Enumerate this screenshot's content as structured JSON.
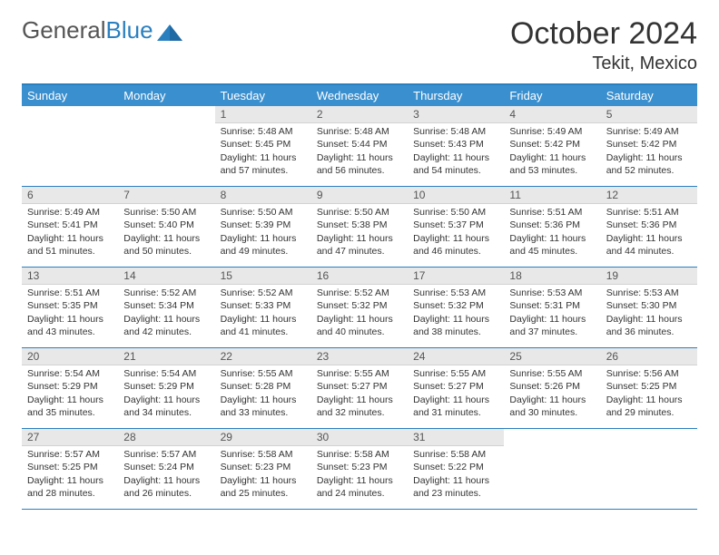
{
  "brand": {
    "part1": "General",
    "part2": "Blue",
    "accent_color": "#2a7fbf",
    "text_color": "#555555"
  },
  "title": "October 2024",
  "location": "Tekit, Mexico",
  "header_bg": "#3a8fcf",
  "border_color": "#2a7fbf",
  "daynum_bg": "#e8e8e8",
  "weekdays": [
    "Sunday",
    "Monday",
    "Tuesday",
    "Wednesday",
    "Thursday",
    "Friday",
    "Saturday"
  ],
  "weeks": [
    [
      null,
      null,
      {
        "n": "1",
        "sr": "Sunrise: 5:48 AM",
        "ss": "Sunset: 5:45 PM",
        "d1": "Daylight: 11 hours",
        "d2": "and 57 minutes."
      },
      {
        "n": "2",
        "sr": "Sunrise: 5:48 AM",
        "ss": "Sunset: 5:44 PM",
        "d1": "Daylight: 11 hours",
        "d2": "and 56 minutes."
      },
      {
        "n": "3",
        "sr": "Sunrise: 5:48 AM",
        "ss": "Sunset: 5:43 PM",
        "d1": "Daylight: 11 hours",
        "d2": "and 54 minutes."
      },
      {
        "n": "4",
        "sr": "Sunrise: 5:49 AM",
        "ss": "Sunset: 5:42 PM",
        "d1": "Daylight: 11 hours",
        "d2": "and 53 minutes."
      },
      {
        "n": "5",
        "sr": "Sunrise: 5:49 AM",
        "ss": "Sunset: 5:42 PM",
        "d1": "Daylight: 11 hours",
        "d2": "and 52 minutes."
      }
    ],
    [
      {
        "n": "6",
        "sr": "Sunrise: 5:49 AM",
        "ss": "Sunset: 5:41 PM",
        "d1": "Daylight: 11 hours",
        "d2": "and 51 minutes."
      },
      {
        "n": "7",
        "sr": "Sunrise: 5:50 AM",
        "ss": "Sunset: 5:40 PM",
        "d1": "Daylight: 11 hours",
        "d2": "and 50 minutes."
      },
      {
        "n": "8",
        "sr": "Sunrise: 5:50 AM",
        "ss": "Sunset: 5:39 PM",
        "d1": "Daylight: 11 hours",
        "d2": "and 49 minutes."
      },
      {
        "n": "9",
        "sr": "Sunrise: 5:50 AM",
        "ss": "Sunset: 5:38 PM",
        "d1": "Daylight: 11 hours",
        "d2": "and 47 minutes."
      },
      {
        "n": "10",
        "sr": "Sunrise: 5:50 AM",
        "ss": "Sunset: 5:37 PM",
        "d1": "Daylight: 11 hours",
        "d2": "and 46 minutes."
      },
      {
        "n": "11",
        "sr": "Sunrise: 5:51 AM",
        "ss": "Sunset: 5:36 PM",
        "d1": "Daylight: 11 hours",
        "d2": "and 45 minutes."
      },
      {
        "n": "12",
        "sr": "Sunrise: 5:51 AM",
        "ss": "Sunset: 5:36 PM",
        "d1": "Daylight: 11 hours",
        "d2": "and 44 minutes."
      }
    ],
    [
      {
        "n": "13",
        "sr": "Sunrise: 5:51 AM",
        "ss": "Sunset: 5:35 PM",
        "d1": "Daylight: 11 hours",
        "d2": "and 43 minutes."
      },
      {
        "n": "14",
        "sr": "Sunrise: 5:52 AM",
        "ss": "Sunset: 5:34 PM",
        "d1": "Daylight: 11 hours",
        "d2": "and 42 minutes."
      },
      {
        "n": "15",
        "sr": "Sunrise: 5:52 AM",
        "ss": "Sunset: 5:33 PM",
        "d1": "Daylight: 11 hours",
        "d2": "and 41 minutes."
      },
      {
        "n": "16",
        "sr": "Sunrise: 5:52 AM",
        "ss": "Sunset: 5:32 PM",
        "d1": "Daylight: 11 hours",
        "d2": "and 40 minutes."
      },
      {
        "n": "17",
        "sr": "Sunrise: 5:53 AM",
        "ss": "Sunset: 5:32 PM",
        "d1": "Daylight: 11 hours",
        "d2": "and 38 minutes."
      },
      {
        "n": "18",
        "sr": "Sunrise: 5:53 AM",
        "ss": "Sunset: 5:31 PM",
        "d1": "Daylight: 11 hours",
        "d2": "and 37 minutes."
      },
      {
        "n": "19",
        "sr": "Sunrise: 5:53 AM",
        "ss": "Sunset: 5:30 PM",
        "d1": "Daylight: 11 hours",
        "d2": "and 36 minutes."
      }
    ],
    [
      {
        "n": "20",
        "sr": "Sunrise: 5:54 AM",
        "ss": "Sunset: 5:29 PM",
        "d1": "Daylight: 11 hours",
        "d2": "and 35 minutes."
      },
      {
        "n": "21",
        "sr": "Sunrise: 5:54 AM",
        "ss": "Sunset: 5:29 PM",
        "d1": "Daylight: 11 hours",
        "d2": "and 34 minutes."
      },
      {
        "n": "22",
        "sr": "Sunrise: 5:55 AM",
        "ss": "Sunset: 5:28 PM",
        "d1": "Daylight: 11 hours",
        "d2": "and 33 minutes."
      },
      {
        "n": "23",
        "sr": "Sunrise: 5:55 AM",
        "ss": "Sunset: 5:27 PM",
        "d1": "Daylight: 11 hours",
        "d2": "and 32 minutes."
      },
      {
        "n": "24",
        "sr": "Sunrise: 5:55 AM",
        "ss": "Sunset: 5:27 PM",
        "d1": "Daylight: 11 hours",
        "d2": "and 31 minutes."
      },
      {
        "n": "25",
        "sr": "Sunrise: 5:55 AM",
        "ss": "Sunset: 5:26 PM",
        "d1": "Daylight: 11 hours",
        "d2": "and 30 minutes."
      },
      {
        "n": "26",
        "sr": "Sunrise: 5:56 AM",
        "ss": "Sunset: 5:25 PM",
        "d1": "Daylight: 11 hours",
        "d2": "and 29 minutes."
      }
    ],
    [
      {
        "n": "27",
        "sr": "Sunrise: 5:57 AM",
        "ss": "Sunset: 5:25 PM",
        "d1": "Daylight: 11 hours",
        "d2": "and 28 minutes."
      },
      {
        "n": "28",
        "sr": "Sunrise: 5:57 AM",
        "ss": "Sunset: 5:24 PM",
        "d1": "Daylight: 11 hours",
        "d2": "and 26 minutes."
      },
      {
        "n": "29",
        "sr": "Sunrise: 5:58 AM",
        "ss": "Sunset: 5:23 PM",
        "d1": "Daylight: 11 hours",
        "d2": "and 25 minutes."
      },
      {
        "n": "30",
        "sr": "Sunrise: 5:58 AM",
        "ss": "Sunset: 5:23 PM",
        "d1": "Daylight: 11 hours",
        "d2": "and 24 minutes."
      },
      {
        "n": "31",
        "sr": "Sunrise: 5:58 AM",
        "ss": "Sunset: 5:22 PM",
        "d1": "Daylight: 11 hours",
        "d2": "and 23 minutes."
      },
      null,
      null
    ]
  ]
}
